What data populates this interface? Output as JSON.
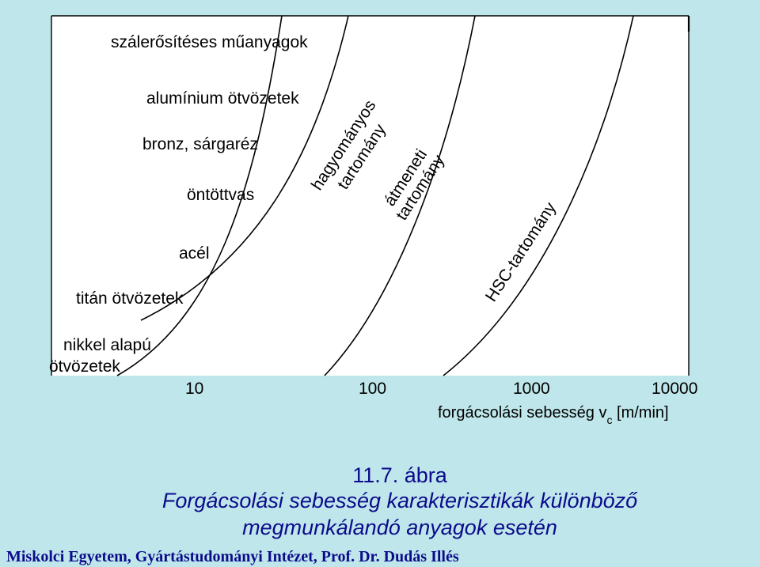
{
  "materials": [
    {
      "key": "fiber_plastics",
      "label": "szálerősítéses műanyagok"
    },
    {
      "key": "aluminium",
      "label": "alumínium ötvözetek"
    },
    {
      "key": "bronze",
      "label": "bronz, sárgaréz"
    },
    {
      "key": "cast_iron",
      "label": "öntöttvas"
    },
    {
      "key": "steel",
      "label": "acél"
    },
    {
      "key": "titanium",
      "label": "titán ötvözetek"
    },
    {
      "key": "nickel_1",
      "label": "nikkel alapú"
    },
    {
      "key": "nickel_2",
      "label": "ötvözetek"
    }
  ],
  "regions": {
    "conventional_1": "hagyományos",
    "conventional_2": "tartomány",
    "transition_1": "átmeneti",
    "transition_2": "tartomány",
    "hsc": "HSC-tartomány"
  },
  "axis": {
    "ticks": [
      "10",
      "100",
      "1000",
      "10000"
    ],
    "label_main": "forgácsolási sebesség v",
    "label_sub": "c",
    "label_unit": " [m/min]",
    "scale": "log"
  },
  "caption": {
    "number": "11.7. ábra",
    "line1": "Forgácsolási sebesség karakterisztikák különböző",
    "line2": "megmunkálandó anyagok esetén"
  },
  "footer": "Miskolci Egyetem, Gyártástudományi Intézet, Prof. Dr. Dudás Illés",
  "colors": {
    "background": "#bfe6ea",
    "panel": "#ffffff",
    "caption_text": "#0b0b8c",
    "line": "#000000"
  }
}
